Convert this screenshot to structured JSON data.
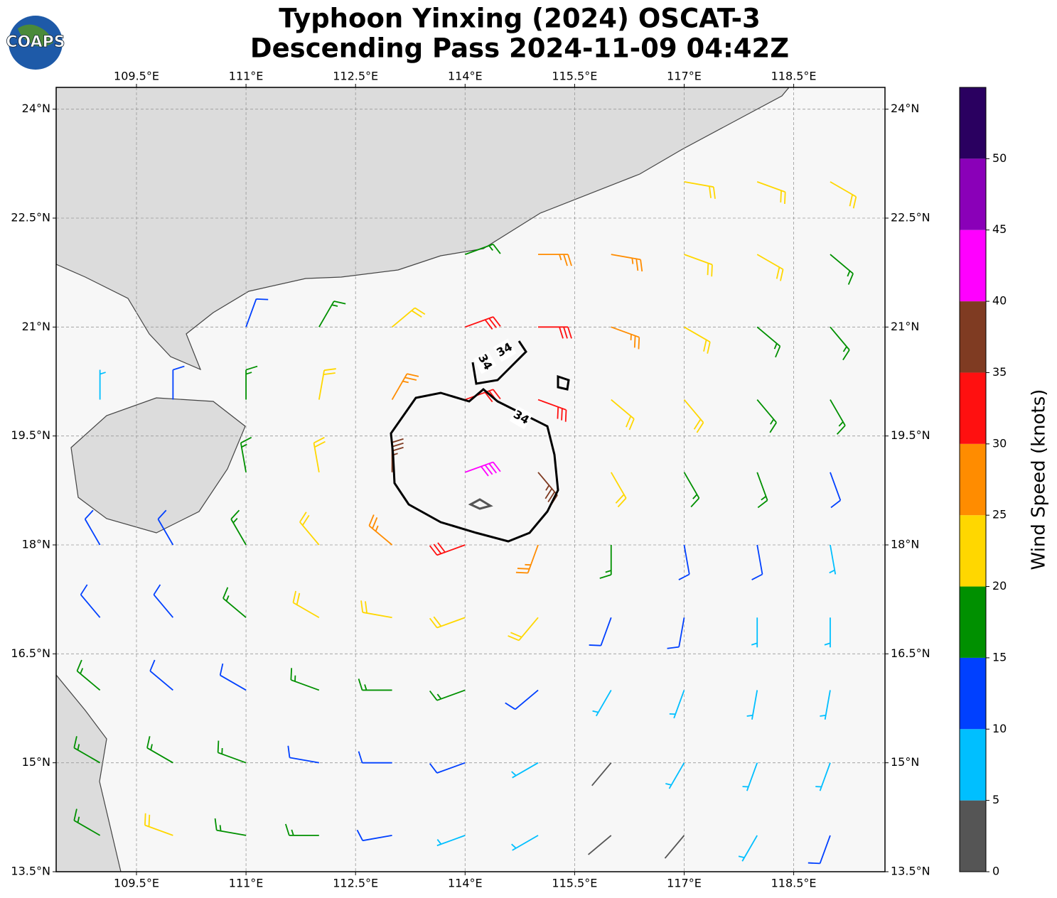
{
  "chart_data": {
    "type": "wind_barbs",
    "title": [
      "Typhoon Yinxing (2024) OSCAT-3",
      "Descending Pass 2024-11-09 04:42Z"
    ],
    "logo": "COAPS",
    "xlim": [
      108.4,
      119.75
    ],
    "ylim": [
      13.5,
      24.3
    ],
    "xticks": [
      {
        "value": 109.5,
        "label": "109.5°E"
      },
      {
        "value": 111,
        "label": "111°E"
      },
      {
        "value": 112.5,
        "label": "112.5°E"
      },
      {
        "value": 114,
        "label": "114°E"
      },
      {
        "value": 115.5,
        "label": "115.5°E"
      },
      {
        "value": 117,
        "label": "117°E"
      },
      {
        "value": 118.5,
        "label": "118.5°E"
      }
    ],
    "yticks": [
      {
        "value": 24,
        "label": "24°N"
      },
      {
        "value": 22.5,
        "label": "22.5°N"
      },
      {
        "value": 21,
        "label": "21°N"
      },
      {
        "value": 19.5,
        "label": "19.5°N"
      },
      {
        "value": 18,
        "label": "18°N"
      },
      {
        "value": 16.5,
        "label": "16.5°N"
      },
      {
        "value": 15,
        "label": "15°N"
      },
      {
        "value": 13.5,
        "label": "13.5°N"
      }
    ],
    "grid": true,
    "contour": {
      "level": 34
    },
    "colorbar": {
      "label": "Wind Speed (knots)",
      "lim": [
        0,
        55
      ],
      "ticks": [
        0,
        5,
        10,
        15,
        20,
        25,
        30,
        35,
        40,
        45,
        50
      ],
      "colors": [
        "#555555",
        "#00bfff",
        "#0040ff",
        "#009000",
        "#ffd700",
        "#ff8c00",
        "#ff1010",
        "#7f3b22",
        "#ff00ff",
        "#8a00b8",
        "#2a0060"
      ]
    },
    "wind": {
      "lons": [
        109,
        110,
        111,
        112,
        113,
        114,
        115,
        116,
        117,
        118,
        119
      ],
      "lats": [
        23,
        22,
        21,
        20,
        19,
        18,
        17,
        16,
        15,
        14
      ],
      "speed": [
        [
          null,
          null,
          null,
          null,
          null,
          null,
          null,
          null,
          22,
          24,
          22
        ],
        [
          null,
          null,
          null,
          null,
          null,
          18,
          27,
          27,
          24,
          20,
          17
        ],
        [
          null,
          null,
          14,
          18,
          22,
          30,
          30,
          26,
          20,
          18,
          16
        ],
        [
          8,
          13,
          16,
          20,
          28,
          34,
          32,
          24,
          20,
          18,
          15
        ],
        [
          null,
          null,
          17,
          22,
          36,
          44,
          38,
          22,
          18,
          15,
          12
        ],
        [
          12,
          13,
          16,
          20,
          29,
          33,
          27,
          18,
          13,
          10,
          8
        ],
        [
          12,
          14,
          16,
          20,
          24,
          24,
          21,
          14,
          11,
          8,
          7
        ],
        [
          16,
          14,
          14,
          15,
          17,
          15,
          10,
          8,
          7,
          7,
          8
        ],
        [
          17,
          18,
          16,
          14,
          13,
          10,
          7,
          4,
          6,
          8,
          9
        ],
        [
          18,
          22,
          18,
          15,
          12,
          9,
          6,
          3,
          4,
          8,
          10
        ]
      ],
      "direction": [
        [
          null,
          null,
          null,
          null,
          null,
          null,
          null,
          null,
          100,
          110,
          120
        ],
        [
          null,
          null,
          null,
          null,
          null,
          70,
          90,
          100,
          110,
          120,
          130
        ],
        [
          null,
          null,
          20,
          30,
          50,
          70,
          90,
          110,
          120,
          130,
          140
        ],
        [
          0,
          0,
          0,
          10,
          30,
          70,
          110,
          130,
          140,
          140,
          150
        ],
        [
          null,
          null,
          350,
          350,
          0,
          70,
          140,
          150,
          150,
          160,
          160
        ],
        [
          330,
          330,
          330,
          320,
          310,
          250,
          200,
          180,
          170,
          170,
          170
        ],
        [
          320,
          320,
          310,
          300,
          280,
          250,
          220,
          200,
          190,
          180,
          180
        ],
        [
          310,
          310,
          300,
          290,
          270,
          250,
          230,
          210,
          200,
          190,
          190
        ],
        [
          300,
          300,
          290,
          280,
          270,
          250,
          240,
          220,
          210,
          200,
          200
        ],
        [
          300,
          290,
          280,
          270,
          260,
          250,
          240,
          230,
          220,
          210,
          200
        ]
      ]
    }
  }
}
